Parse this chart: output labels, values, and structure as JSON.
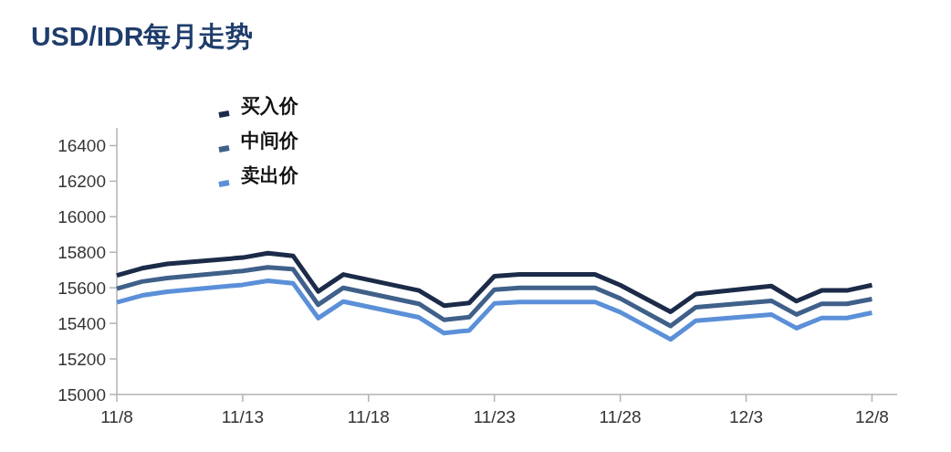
{
  "chart_data": {
    "type": "line",
    "title": "USD/IDR每月走势",
    "x": [
      "--11-08",
      "--11-09",
      "--11-10",
      "--11-13",
      "--11-14",
      "--11-15",
      "--11-16",
      "--11-17",
      "--11-20",
      "--11-21",
      "--11-22",
      "--11-23",
      "--11-24",
      "--11-27",
      "--11-28",
      "--11-30",
      "--12-01",
      "--12-04",
      "--12-05",
      "--12-06",
      "--12-07",
      "--12-08"
    ],
    "series": [
      {
        "name": "买入价",
        "color": "#1b2b48",
        "values": [
          15670,
          15710,
          15735,
          15770,
          15795,
          15780,
          15580,
          15675,
          15585,
          15500,
          15515,
          15665,
          15675,
          15675,
          15615,
          15465,
          15565,
          15610,
          15525,
          15585,
          15585,
          15615
        ]
      },
      {
        "name": "中间价",
        "color": "#3f6089",
        "values": [
          15595,
          15635,
          15655,
          15695,
          15715,
          15705,
          15505,
          15600,
          15510,
          15420,
          15435,
          15590,
          15600,
          15600,
          15540,
          15385,
          15490,
          15527,
          15450,
          15510,
          15510,
          15537
        ]
      },
      {
        "name": "卖出价",
        "color": "#5b90d8",
        "values": [
          15518,
          15557,
          15578,
          15617,
          15640,
          15626,
          15430,
          15523,
          15434,
          15345,
          15360,
          15512,
          15520,
          15520,
          15463,
          15310,
          15415,
          15450,
          15373,
          15430,
          15430,
          15460
        ]
      }
    ],
    "xlim": [
      "--11-08",
      "--12-09"
    ],
    "xticks": [
      {
        "value": "--11-08",
        "label": "11/8"
      },
      {
        "value": "--11-13",
        "label": "11/13"
      },
      {
        "value": "--11-18",
        "label": "11/18"
      },
      {
        "value": "--11-23",
        "label": "11/23"
      },
      {
        "value": "--11-28",
        "label": "11/28"
      },
      {
        "value": "--12-03",
        "label": "12/3"
      },
      {
        "value": "--12-08",
        "label": "12/8"
      }
    ],
    "ylim": [
      15000,
      16500
    ],
    "yticks": [
      15000,
      15200,
      15400,
      15600,
      15800,
      16000,
      16200,
      16400
    ],
    "legend": "top left",
    "grid": false,
    "marker": "none",
    "line_style": "solid"
  }
}
